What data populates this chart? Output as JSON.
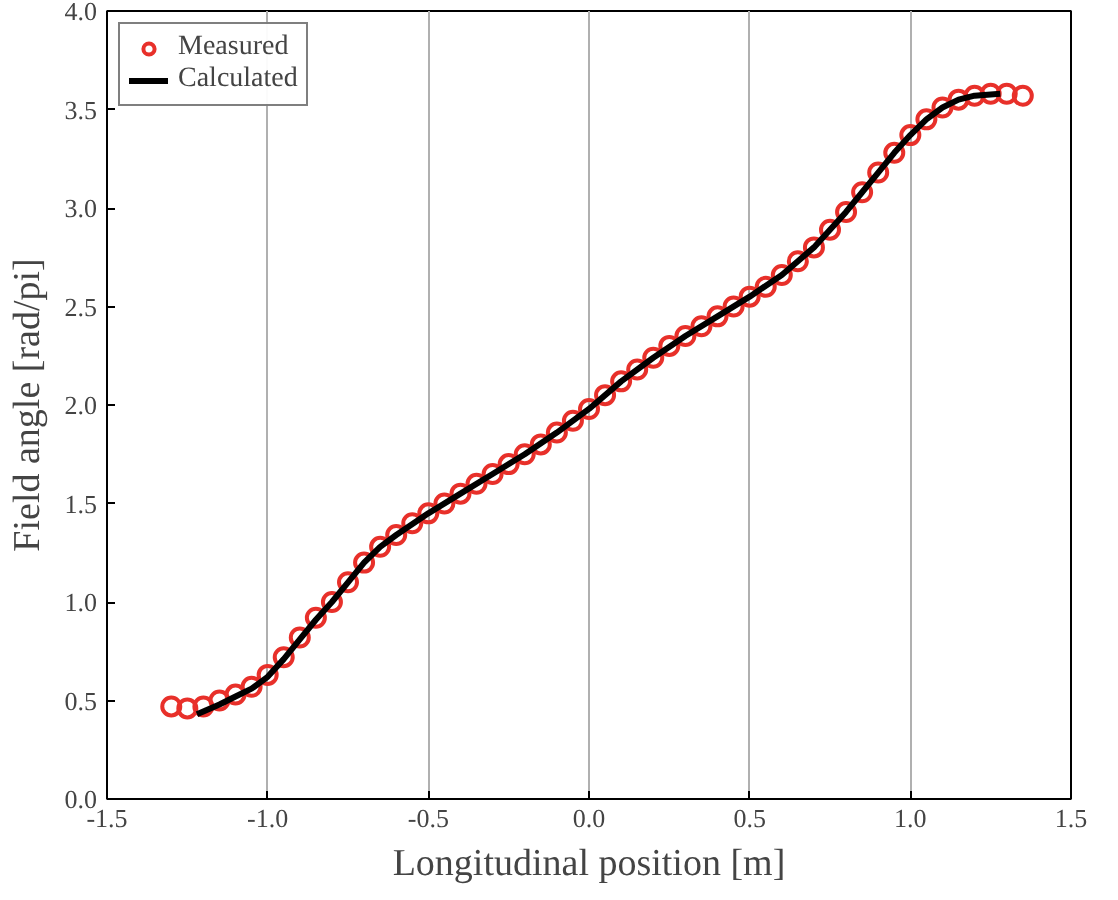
{
  "chart_data": {
    "type": "scatter",
    "xlabel": "Longitudinal position [m]",
    "ylabel": "Field angle [rad/pi]",
    "xlim": [
      -1.5,
      1.5
    ],
    "ylim": [
      0.0,
      4.0
    ],
    "xticks": [
      {
        "value": -1.5,
        "label": "-1.5"
      },
      {
        "value": -1.0,
        "label": "-1.0"
      },
      {
        "value": -0.5,
        "label": "-0.5"
      },
      {
        "value": 0,
        "label": "0.0"
      },
      {
        "value": 0.5,
        "label": "0.5"
      },
      {
        "value": 1.0,
        "label": "1.0"
      },
      {
        "value": 1.5,
        "label": "1.5"
      }
    ],
    "yticks": [
      {
        "value": 0,
        "label": "0.0"
      },
      {
        "value": 0.5,
        "label": "0.5"
      },
      {
        "value": 1.0,
        "label": "1.0"
      },
      {
        "value": 1.5,
        "label": "1.5"
      },
      {
        "value": 2.0,
        "label": "2.0"
      },
      {
        "value": 2.5,
        "label": "2.5"
      },
      {
        "value": 3.0,
        "label": "3.0"
      },
      {
        "value": 3.5,
        "label": "3.5"
      },
      {
        "value": 4.0,
        "label": "4.0"
      }
    ],
    "grid": "x",
    "legend": "top left",
    "series": [
      {
        "name": "Measured",
        "marker": "circle",
        "color": "#e8302a",
        "x": [
          -1.3,
          -1.25,
          -1.2,
          -1.15,
          -1.1,
          -1.05,
          -1.0,
          -0.95,
          -0.9,
          -0.85,
          -0.8,
          -0.75,
          -0.7,
          -0.65,
          -0.6,
          -0.55,
          -0.5,
          -0.45,
          -0.4,
          -0.35,
          -0.3,
          -0.25,
          -0.2,
          -0.15,
          -0.1,
          -0.05,
          0,
          0.05,
          0.1,
          0.15,
          0.2,
          0.25,
          0.3,
          0.35,
          0.4,
          0.45,
          0.5,
          0.55,
          0.6,
          0.65,
          0.7,
          0.75,
          0.8,
          0.85,
          0.9,
          0.95,
          1.0,
          1.05,
          1.1,
          1.15,
          1.2,
          1.25,
          1.3,
          1.35
        ],
        "values": [
          0.47,
          0.46,
          0.47,
          0.5,
          0.53,
          0.57,
          0.63,
          0.72,
          0.82,
          0.92,
          1.0,
          1.1,
          1.2,
          1.28,
          1.34,
          1.4,
          1.45,
          1.5,
          1.55,
          1.6,
          1.65,
          1.7,
          1.75,
          1.8,
          1.86,
          1.92,
          1.98,
          2.05,
          2.12,
          2.18,
          2.24,
          2.3,
          2.35,
          2.4,
          2.45,
          2.5,
          2.55,
          2.6,
          2.66,
          2.73,
          2.8,
          2.89,
          2.98,
          3.08,
          3.18,
          3.28,
          3.37,
          3.45,
          3.51,
          3.55,
          3.57,
          3.58,
          3.58,
          3.57
        ]
      },
      {
        "name": "Calculated",
        "type": "line",
        "line_style": "solid",
        "color": "#000000",
        "x": [
          -1.22,
          -1.15,
          -1.1,
          -1.05,
          -1.0,
          -0.95,
          -0.9,
          -0.85,
          -0.8,
          -0.75,
          -0.7,
          -0.65,
          -0.6,
          -0.5,
          -0.4,
          -0.3,
          -0.2,
          -0.1,
          0,
          0.1,
          0.2,
          0.3,
          0.4,
          0.5,
          0.6,
          0.65,
          0.7,
          0.75,
          0.8,
          0.85,
          0.9,
          0.95,
          1.0,
          1.05,
          1.1,
          1.15,
          1.2,
          1.28
        ],
        "values": [
          0.43,
          0.48,
          0.52,
          0.56,
          0.62,
          0.71,
          0.81,
          0.91,
          1.0,
          1.1,
          1.2,
          1.28,
          1.34,
          1.45,
          1.55,
          1.65,
          1.75,
          1.86,
          1.98,
          2.12,
          2.24,
          2.35,
          2.45,
          2.55,
          2.66,
          2.73,
          2.8,
          2.89,
          2.98,
          3.08,
          3.18,
          3.28,
          3.37,
          3.45,
          3.51,
          3.55,
          3.57,
          3.58
        ]
      }
    ]
  }
}
